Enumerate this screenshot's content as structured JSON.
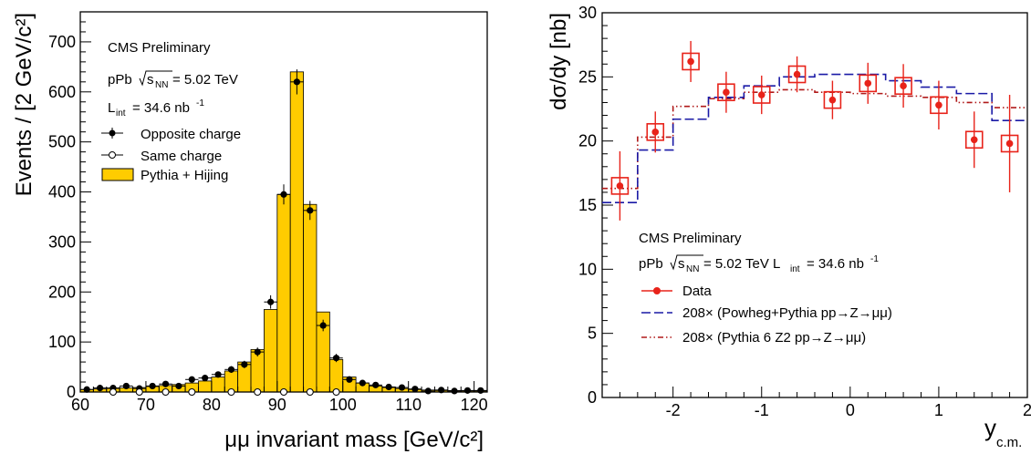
{
  "chart_data": [
    {
      "type": "bar",
      "xlabel": "μμ invariant mass [GeV/c²]",
      "ylabel": "Events / [2 GeV/c²]",
      "xlim": [
        60,
        122
      ],
      "ylim": [
        0,
        760
      ],
      "x_ticks": [
        60,
        70,
        80,
        90,
        100,
        110,
        120
      ],
      "y_ticks": [
        0,
        100,
        200,
        300,
        400,
        500,
        600,
        700
      ],
      "annotations": [
        "CMS Preliminary",
        "pPb √s_NN = 5.02 TeV",
        "L_int = 34.6 nb⁻¹"
      ],
      "legend": [
        "Opposite charge",
        "Same charge",
        "Pythia + Hijing"
      ],
      "colors": {
        "mc_fill": "#ffcc00",
        "data": "#000000"
      },
      "bin_edges": [
        60,
        62,
        64,
        66,
        68,
        70,
        72,
        74,
        76,
        78,
        80,
        82,
        84,
        86,
        88,
        90,
        92,
        94,
        96,
        98,
        100,
        102,
        104,
        106,
        108,
        110,
        112,
        114,
        116,
        118,
        120,
        122
      ],
      "series": [
        {
          "name": "Pythia + Hijing",
          "values": [
            5,
            6,
            7,
            8,
            9,
            11,
            13,
            15,
            18,
            22,
            30,
            42,
            60,
            85,
            165,
            395,
            640,
            375,
            160,
            65,
            30,
            18,
            12,
            9,
            7,
            5,
            4,
            3,
            3,
            2,
            2
          ]
        },
        {
          "name": "Opposite charge",
          "x": [
            61,
            63,
            65,
            67,
            69,
            71,
            73,
            75,
            77,
            79,
            81,
            83,
            85,
            87,
            89,
            91,
            93,
            95,
            97,
            99,
            101,
            103,
            105,
            107,
            109,
            111,
            113,
            115,
            117,
            119,
            121
          ],
          "values": [
            5,
            8,
            8,
            12,
            7,
            12,
            16,
            12,
            25,
            28,
            35,
            45,
            55,
            80,
            180,
            395,
            620,
            363,
            133,
            68,
            25,
            18,
            14,
            10,
            9,
            6,
            2,
            4,
            2,
            3,
            3
          ],
          "errors": [
            2,
            3,
            3,
            3.5,
            3,
            3.5,
            4,
            3.5,
            5,
            5.3,
            6,
            6.7,
            7.4,
            9,
            13.4,
            20,
            25,
            19,
            11.5,
            8.2,
            5,
            4.2,
            3.7,
            3.2,
            3,
            2.4,
            1.4,
            2,
            1.4,
            1.7,
            1.7
          ]
        },
        {
          "name": "Same charge",
          "x": [
            65,
            69,
            73,
            77,
            83,
            87,
            91,
            95,
            99
          ],
          "values": [
            0,
            0,
            0,
            0,
            0,
            0,
            0,
            0,
            0
          ]
        }
      ]
    },
    {
      "type": "scatter",
      "xlabel": "y_c.m.",
      "ylabel": "dσ/dy [nb]",
      "xlim": [
        -2.8,
        2
      ],
      "ylim": [
        0,
        30
      ],
      "x_ticks": [
        -2,
        -1,
        0,
        1,
        2
      ],
      "y_ticks": [
        0,
        5,
        10,
        15,
        20,
        25,
        30
      ],
      "annotations": [
        "CMS Preliminary",
        "pPb √s_NN = 5.02 TeV L_int = 34.6 nb⁻¹"
      ],
      "legend": [
        "Data",
        "208× (Powheg+Pythia pp→Z→μμ)",
        "208× (Pythia 6 Z2 pp→Z→μμ)"
      ],
      "colors": {
        "data": "#e8231a",
        "powheg": "#1a1aa6",
        "pythia": "#b01a1a"
      },
      "series": [
        {
          "name": "Data",
          "x": [
            -2.6,
            -2.2,
            -1.8,
            -1.4,
            -1.0,
            -0.6,
            -0.2,
            0.2,
            0.6,
            1.0,
            1.4,
            1.8
          ],
          "values": [
            16.5,
            20.7,
            26.2,
            23.8,
            23.6,
            25.2,
            23.2,
            24.5,
            24.3,
            22.8,
            20.1,
            19.8
          ],
          "errors": [
            2.7,
            1.6,
            1.6,
            1.6,
            1.5,
            1.4,
            1.5,
            1.6,
            1.7,
            1.9,
            2.2,
            3.8
          ]
        },
        {
          "name": "208× (Powheg+Pythia pp→Z→μμ)",
          "bin_edges": [
            -2.8,
            -2.4,
            -2.0,
            -1.6,
            -1.2,
            -0.8,
            -0.4,
            0.0,
            0.4,
            0.8,
            1.2,
            1.6,
            2.0
          ],
          "values": [
            15.2,
            19.3,
            21.7,
            23.4,
            24.3,
            25.0,
            25.2,
            25.2,
            24.7,
            24.2,
            23.7,
            21.6
          ]
        },
        {
          "name": "208× (Pythia 6 Z2 pp→Z→μμ)",
          "bin_edges": [
            -2.8,
            -2.4,
            -2.0,
            -1.6,
            -1.2,
            -0.8,
            -0.4,
            0.0,
            0.4,
            0.8,
            1.2,
            1.6,
            2.0
          ],
          "values": [
            16.3,
            20.3,
            22.7,
            23.3,
            23.8,
            24.0,
            23.8,
            23.7,
            23.5,
            23.4,
            23.0,
            22.6
          ]
        }
      ]
    }
  ]
}
